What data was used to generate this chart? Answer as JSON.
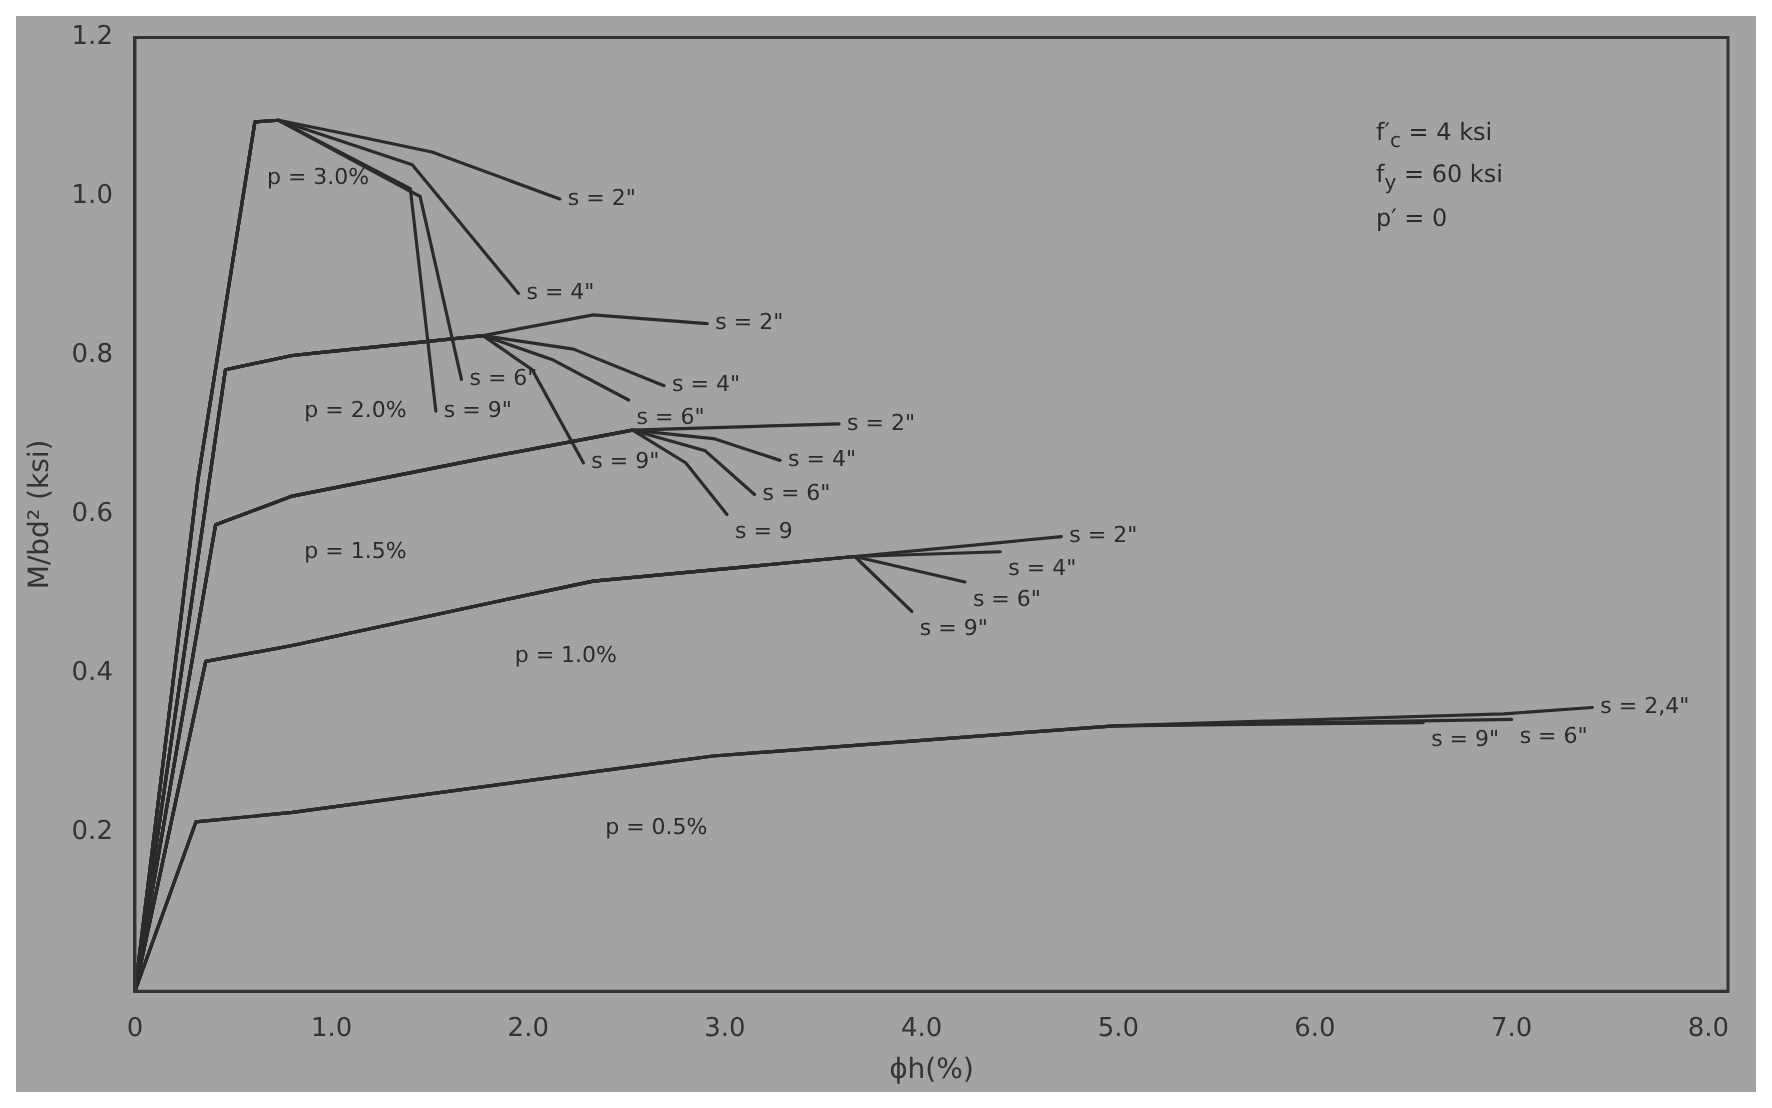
{
  "chart_data": {
    "type": "line",
    "xlabel": "ϕh(%)",
    "ylabel": "M/bd² (ksi)",
    "xlim": [
      0,
      8.1
    ],
    "xticks": [
      0,
      {
        "value": 1,
        "label": "1.0"
      },
      {
        "value": 2,
        "label": "2.0"
      },
      {
        "value": 3,
        "label": "3.0"
      },
      {
        "value": 4,
        "label": "4.0"
      },
      {
        "value": 5,
        "label": "5.0"
      },
      {
        "value": 6,
        "label": "6.0"
      },
      {
        "value": 7,
        "label": "7.0"
      },
      {
        "value": 8,
        "label": "8.0"
      }
    ],
    "ylim": [
      0,
      1.2
    ],
    "yticks": [
      0.2,
      0.4,
      0.6,
      0.8,
      {
        "value": 1,
        "label": "1.0"
      },
      1.2
    ],
    "grid": false,
    "legend": false,
    "marker": "none",
    "line_style": "solid",
    "series": [
      {
        "name": "s = 2\"",
        "color": "#2b2b2b",
        "x": [
          0,
          0.32,
          0.61,
          0.73,
          1.05,
          1.51,
          2.16
        ],
        "values": [
          0,
          0.643,
          1.094,
          1.096,
          1.08,
          1.056,
          0.997
        ]
      },
      {
        "name": "s = 4\"",
        "color": "#2b2b2b",
        "x": [
          0,
          0.32,
          0.61,
          0.73,
          1.41,
          1.95
        ],
        "values": [
          0,
          0.643,
          1.094,
          1.096,
          1.04,
          0.878
        ]
      },
      {
        "name": "s = 6\"",
        "color": "#2b2b2b",
        "x": [
          0,
          0.32,
          0.61,
          0.73,
          1.45,
          1.66
        ],
        "values": [
          0,
          0.643,
          1.094,
          1.096,
          1.0,
          0.77
        ]
      },
      {
        "name": "s = 9\"",
        "color": "#2b2b2b",
        "x": [
          0,
          0.32,
          0.61,
          0.73,
          1.4,
          1.53
        ],
        "values": [
          0,
          0.643,
          1.094,
          1.096,
          1.01,
          0.73
        ]
      },
      {
        "name": "s = 2\"",
        "color": "#2b2b2b",
        "x": [
          0,
          0.46,
          0.8,
          0.95,
          1.31,
          1.77,
          2.33,
          2.91
        ],
        "values": [
          0,
          0.782,
          0.8,
          0.804,
          0.813,
          0.825,
          0.851,
          0.84
        ]
      },
      {
        "name": "s = 4\"",
        "color": "#2b2b2b",
        "x": [
          0,
          0.46,
          0.8,
          0.95,
          1.31,
          1.77,
          2.23,
          2.69
        ],
        "values": [
          0,
          0.782,
          0.8,
          0.804,
          0.813,
          0.825,
          0.808,
          0.762
        ]
      },
      {
        "name": "s = 6\"",
        "color": "#2b2b2b",
        "x": [
          0,
          0.46,
          0.8,
          0.95,
          1.31,
          1.77,
          2.12,
          2.51
        ],
        "values": [
          0,
          0.782,
          0.8,
          0.804,
          0.813,
          0.825,
          0.795,
          0.744
        ]
      },
      {
        "name": "s = 9\"",
        "color": "#2b2b2b",
        "x": [
          0,
          0.46,
          0.8,
          0.95,
          1.31,
          1.77,
          2.02,
          2.28
        ],
        "values": [
          0,
          0.782,
          0.8,
          0.804,
          0.813,
          0.825,
          0.782,
          0.665
        ]
      },
      {
        "name": "s = 2\"",
        "color": "#2b2b2b",
        "x": [
          0,
          0.41,
          0.8,
          1.25,
          1.82,
          2.53,
          3.58
        ],
        "values": [
          0,
          0.587,
          0.623,
          0.645,
          0.673,
          0.706,
          0.714
        ]
      },
      {
        "name": "s = 4\"",
        "color": "#2b2b2b",
        "x": [
          0,
          0.41,
          0.8,
          1.25,
          1.82,
          2.53,
          2.95,
          3.28
        ],
        "values": [
          0,
          0.587,
          0.623,
          0.645,
          0.673,
          0.706,
          0.695,
          0.668
        ]
      },
      {
        "name": "s = 6\"",
        "color": "#2b2b2b",
        "x": [
          0,
          0.41,
          0.8,
          1.25,
          1.82,
          2.53,
          2.9,
          3.15
        ],
        "values": [
          0,
          0.587,
          0.623,
          0.645,
          0.673,
          0.706,
          0.68,
          0.625
        ]
      },
      {
        "name": "s = 9",
        "color": "#2b2b2b",
        "x": [
          0,
          0.41,
          0.8,
          1.25,
          1.82,
          2.53,
          2.8,
          3.01
        ],
        "values": [
          0,
          0.587,
          0.623,
          0.645,
          0.673,
          0.706,
          0.665,
          0.6
        ]
      },
      {
        "name": "s = 2\"",
        "color": "#2b2b2b",
        "x": [
          0,
          0.36,
          0.8,
          1.87,
          2.33,
          3.66,
          4.71
        ],
        "values": [
          0,
          0.415,
          0.435,
          0.492,
          0.516,
          0.547,
          0.572
        ]
      },
      {
        "name": "s = 4\"",
        "color": "#2b2b2b",
        "x": [
          0,
          0.36,
          0.8,
          1.87,
          2.33,
          3.66,
          4.4
        ],
        "values": [
          0,
          0.415,
          0.435,
          0.492,
          0.516,
          0.547,
          0.553
        ]
      },
      {
        "name": "s = 6\"",
        "color": "#2b2b2b",
        "x": [
          0,
          0.36,
          0.8,
          1.87,
          2.33,
          3.66,
          4.22
        ],
        "values": [
          0,
          0.415,
          0.435,
          0.492,
          0.516,
          0.547,
          0.515
        ]
      },
      {
        "name": "s = 9\"",
        "color": "#2b2b2b",
        "x": [
          0,
          0.36,
          0.8,
          1.87,
          2.33,
          3.66,
          3.95
        ],
        "values": [
          0,
          0.415,
          0.435,
          0.492,
          0.516,
          0.547,
          0.478
        ]
      },
      {
        "name": "s = 2,4\"",
        "color": "#2b2b2b",
        "x": [
          0,
          0.31,
          0.8,
          2.33,
          2.94,
          4.98,
          6.96,
          7.41
        ],
        "values": [
          0,
          0.213,
          0.225,
          0.276,
          0.296,
          0.334,
          0.349,
          0.357
        ]
      },
      {
        "name": "s = 6\"",
        "color": "#2b2b2b",
        "x": [
          0,
          0.31,
          0.8,
          2.33,
          2.94,
          4.98,
          7.0
        ],
        "values": [
          0,
          0.213,
          0.225,
          0.276,
          0.296,
          0.334,
          0.342
        ]
      },
      {
        "name": "s = 9\"",
        "color": "#2b2b2b",
        "x": [
          0,
          0.31,
          0.8,
          2.33,
          2.94,
          4.98,
          6.55
        ],
        "values": [
          0,
          0.213,
          0.225,
          0.276,
          0.296,
          0.334,
          0.338
        ]
      }
    ],
    "annotations": [
      {
        "text": "p = 3.0%",
        "x": 0.61,
        "y": 1.094
      },
      {
        "text": "p = 2.0%",
        "x": 0.8,
        "y": 0.8
      },
      {
        "text": "p = 1.5%",
        "x": 0.8,
        "y": 0.623
      },
      {
        "text": "p = 1.0%",
        "x": 1.87,
        "y": 0.492
      },
      {
        "text": "p = 0.5%",
        "x": 2.33,
        "y": 0.276
      },
      "f′$_{c}$ = 4 ksi",
      "f$_{y}$ = 60 ksi",
      "p′ = 0"
    ]
  }
}
